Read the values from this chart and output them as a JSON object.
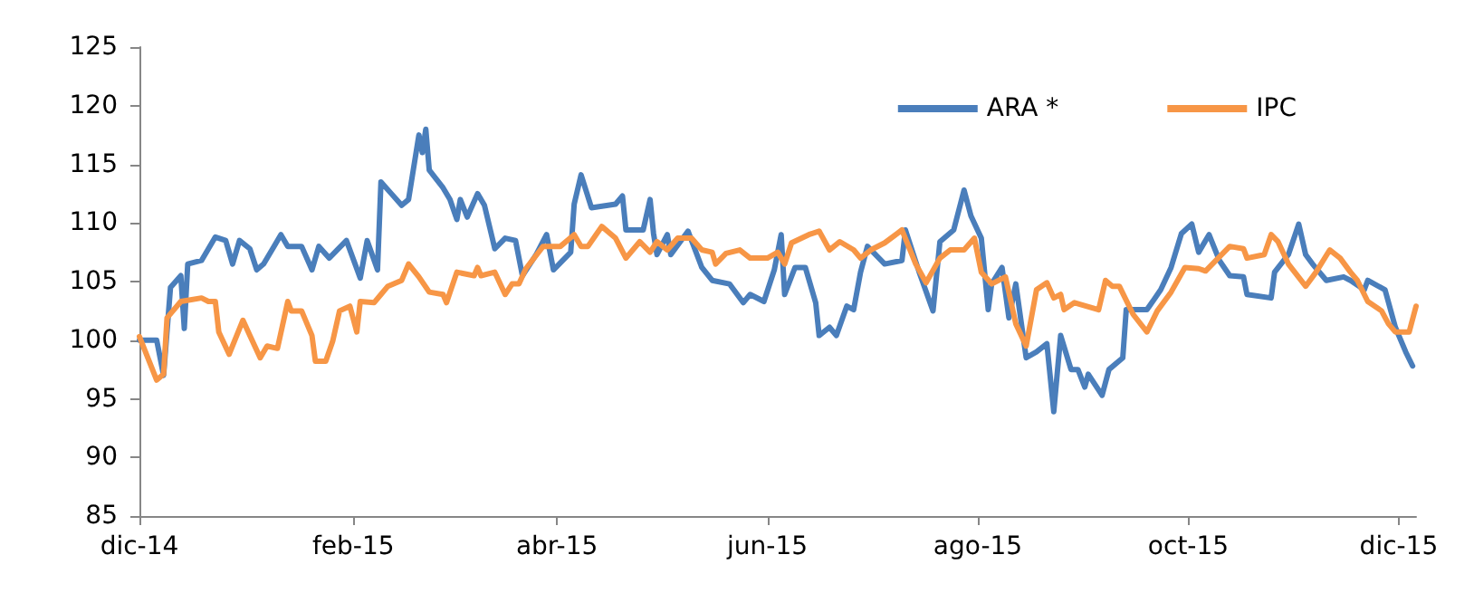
{
  "chart_data": {
    "type": "line",
    "xlim": [
      "2014-12-01",
      "2015-12-06"
    ],
    "ylim": [
      85,
      125
    ],
    "xticks": [
      {
        "value": "2014-12-01",
        "label": "dic-14"
      },
      {
        "value": "2015-02-01",
        "label": "feb-15"
      },
      {
        "value": "2015-04-01",
        "label": "abr-15"
      },
      {
        "value": "2015-06-01",
        "label": "jun-15"
      },
      {
        "value": "2015-08-01",
        "label": "ago-15"
      },
      {
        "value": "2015-10-01",
        "label": "oct-15"
      },
      {
        "value": "2015-12-01",
        "label": "dic-15"
      }
    ],
    "yticks": [
      85,
      90,
      95,
      100,
      105,
      110,
      115,
      120,
      125
    ],
    "grid": false,
    "legend": "top right",
    "marker": "none",
    "line_style": "solid",
    "series": [
      {
        "name": "ARA *",
        "color": "#4a7ebb",
        "x": [
          "2014-12-01",
          "2014-12-06",
          "2014-12-08",
          "2014-12-10",
          "2014-12-13",
          "2014-12-14",
          "2014-12-15",
          "2014-12-19",
          "2014-12-23",
          "2014-12-26",
          "2014-12-28",
          "2014-12-30",
          "2015-01-02",
          "2015-01-04",
          "2015-01-06",
          "2015-01-09",
          "2015-01-11",
          "2015-01-13",
          "2015-01-17",
          "2015-01-20",
          "2015-01-22",
          "2015-01-25",
          "2015-01-30",
          "2015-02-03",
          "2015-02-05",
          "2015-02-08",
          "2015-02-09",
          "2015-02-12",
          "2015-02-15",
          "2015-02-17",
          "2015-02-20",
          "2015-02-21",
          "2015-02-22",
          "2015-02-23",
          "2015-02-27",
          "2015-03-01",
          "2015-03-03",
          "2015-03-04",
          "2015-03-06",
          "2015-03-09",
          "2015-03-11",
          "2015-03-14",
          "2015-03-17",
          "2015-03-20",
          "2015-03-22",
          "2015-03-26",
          "2015-03-29",
          "2015-03-31",
          "2015-04-05",
          "2015-04-06",
          "2015-04-08",
          "2015-04-11",
          "2015-04-18",
          "2015-04-20",
          "2015-04-21",
          "2015-04-26",
          "2015-04-28",
          "2015-04-29",
          "2015-04-30",
          "2015-05-03",
          "2015-05-04",
          "2015-05-09",
          "2015-05-13",
          "2015-05-16",
          "2015-05-21",
          "2015-05-25",
          "2015-05-27",
          "2015-05-31",
          "2015-06-03",
          "2015-06-05",
          "2015-06-06",
          "2015-06-09",
          "2015-06-12",
          "2015-06-15",
          "2015-06-16",
          "2015-06-19",
          "2015-06-21",
          "2015-06-24",
          "2015-06-26",
          "2015-06-28",
          "2015-06-30",
          "2015-07-05",
          "2015-07-10",
          "2015-07-11",
          "2015-07-15",
          "2015-07-19",
          "2015-07-21",
          "2015-07-25",
          "2015-07-28",
          "2015-07-30",
          "2015-08-02",
          "2015-08-04",
          "2015-08-05",
          "2015-08-08",
          "2015-08-10",
          "2015-08-12",
          "2015-08-15",
          "2015-08-18",
          "2015-08-21",
          "2015-08-23",
          "2015-08-25",
          "2015-08-28",
          "2015-08-30",
          "2015-09-01",
          "2015-09-02",
          "2015-09-06",
          "2015-09-08",
          "2015-09-12",
          "2015-09-13",
          "2015-09-19",
          "2015-09-23",
          "2015-09-26",
          "2015-09-29",
          "2015-10-02",
          "2015-10-04",
          "2015-10-07",
          "2015-10-10",
          "2015-10-13",
          "2015-10-17",
          "2015-10-18",
          "2015-10-25",
          "2015-10-26",
          "2015-10-30",
          "2015-11-02",
          "2015-11-04",
          "2015-11-06",
          "2015-11-10",
          "2015-11-15",
          "2015-11-17",
          "2015-11-21",
          "2015-11-22",
          "2015-11-27",
          "2015-11-30",
          "2015-12-03",
          "2015-12-05"
        ],
        "values": [
          100,
          100,
          97,
          104.5,
          105.5,
          101,
          106.5,
          106.8,
          108.8,
          108.5,
          106.5,
          108.5,
          107.8,
          106,
          106.5,
          108,
          109,
          108,
          108,
          106,
          108,
          107,
          108.5,
          105.3,
          108.5,
          106,
          113.5,
          112.5,
          111.5,
          112,
          117.5,
          116,
          118,
          114.5,
          113,
          112,
          110.3,
          112,
          110.5,
          112.5,
          111.5,
          107.8,
          108.7,
          108.5,
          105.5,
          107.3,
          109,
          106,
          107.5,
          111.6,
          114.1,
          111.3,
          111.6,
          112.3,
          109.4,
          109.4,
          112,
          109.1,
          107.3,
          109,
          107.3,
          109.3,
          106.2,
          105.1,
          104.8,
          103.2,
          103.9,
          103.3,
          106,
          109,
          103.9,
          106.2,
          106.2,
          103.2,
          100.4,
          101.1,
          100.4,
          102.9,
          102.6,
          105.8,
          108,
          106.5,
          106.8,
          109.4,
          105.8,
          102.5,
          108.4,
          109.4,
          112.8,
          110.6,
          108.7,
          102.6,
          104.8,
          106.2,
          101.9,
          104.8,
          98.5,
          99,
          99.7,
          93.9,
          100.4,
          97.5,
          97.5,
          96,
          97.1,
          95.3,
          97.5,
          98.5,
          102.6,
          102.6,
          104.3,
          106.2,
          109.1,
          109.9,
          107.5,
          109,
          106.8,
          105.5,
          105.4,
          103.9,
          103.6,
          105.8,
          107.3,
          109.9,
          107.3,
          106.5,
          105.1,
          105.4,
          105.1,
          104.3,
          105.1,
          104.3,
          101.1,
          99,
          97.8
        ]
      },
      {
        "name": "IPC",
        "color": "#f79646",
        "x": [
          "2014-12-01",
          "2014-12-06",
          "2014-12-08",
          "2014-12-09",
          "2014-12-13",
          "2014-12-19",
          "2014-12-21",
          "2014-12-23",
          "2014-12-24",
          "2014-12-27",
          "2014-12-31",
          "2015-01-02",
          "2015-01-05",
          "2015-01-07",
          "2015-01-10",
          "2015-01-13",
          "2015-01-14",
          "2015-01-17",
          "2015-01-20",
          "2015-01-21",
          "2015-01-24",
          "2015-01-26",
          "2015-01-28",
          "2015-01-31",
          "2015-02-02",
          "2015-02-03",
          "2015-02-07",
          "2015-02-09",
          "2015-02-11",
          "2015-02-15",
          "2015-02-17",
          "2015-02-20",
          "2015-02-23",
          "2015-02-27",
          "2015-02-28",
          "2015-03-03",
          "2015-03-08",
          "2015-03-09",
          "2015-03-10",
          "2015-03-14",
          "2015-03-17",
          "2015-03-19",
          "2015-03-21",
          "2015-03-23",
          "2015-03-28",
          "2015-04-02",
          "2015-04-06",
          "2015-04-08",
          "2015-04-10",
          "2015-04-14",
          "2015-04-18",
          "2015-04-21",
          "2015-04-25",
          "2015-04-28",
          "2015-04-30",
          "2015-05-03",
          "2015-05-06",
          "2015-05-10",
          "2015-05-13",
          "2015-05-16",
          "2015-05-17",
          "2015-05-20",
          "2015-05-24",
          "2015-05-27",
          "2015-06-01",
          "2015-06-04",
          "2015-06-06",
          "2015-06-08",
          "2015-06-13",
          "2015-06-16",
          "2015-06-19",
          "2015-06-22",
          "2015-06-26",
          "2015-06-28",
          "2015-07-01",
          "2015-07-05",
          "2015-07-10",
          "2015-07-14",
          "2015-07-17",
          "2015-07-21",
          "2015-07-24",
          "2015-07-28",
          "2015-07-31",
          "2015-08-02",
          "2015-08-05",
          "2015-08-09",
          "2015-08-12",
          "2015-08-15",
          "2015-08-18",
          "2015-08-21",
          "2015-08-23",
          "2015-08-25",
          "2015-08-26",
          "2015-08-29",
          "2015-09-05",
          "2015-09-07",
          "2015-09-09",
          "2015-09-11",
          "2015-09-15",
          "2015-09-19",
          "2015-09-22",
          "2015-09-26",
          "2015-09-30",
          "2015-10-04",
          "2015-10-06",
          "2015-10-09",
          "2015-10-13",
          "2015-10-17",
          "2015-10-18",
          "2015-10-23",
          "2015-10-25",
          "2015-10-27",
          "2015-10-30",
          "2015-11-04",
          "2015-11-07",
          "2015-11-11",
          "2015-11-14",
          "2015-11-17",
          "2015-11-19",
          "2015-11-22",
          "2015-11-26",
          "2015-11-28",
          "2015-11-30",
          "2015-12-04",
          "2015-12-06"
        ],
        "values": [
          100.3,
          96.6,
          97.1,
          101.9,
          103.3,
          103.6,
          103.3,
          103.3,
          100.7,
          98.8,
          101.7,
          100.4,
          98.5,
          99.5,
          99.3,
          103.3,
          102.5,
          102.5,
          100.4,
          98.2,
          98.2,
          99.9,
          102.5,
          102.9,
          100.7,
          103.3,
          103.2,
          103.9,
          104.6,
          105.1,
          106.5,
          105.4,
          104.1,
          103.9,
          103.2,
          105.8,
          105.5,
          106.2,
          105.5,
          105.8,
          103.9,
          104.8,
          104.8,
          106.1,
          108,
          108,
          109,
          108,
          108,
          109.7,
          108.7,
          107,
          108.4,
          107.5,
          108.4,
          107.7,
          108.7,
          108.7,
          107.7,
          107.5,
          106.5,
          107.4,
          107.7,
          107,
          107,
          107.5,
          106.5,
          108.3,
          109,
          109.3,
          107.7,
          108.4,
          107.7,
          107,
          107.7,
          108.3,
          109.4,
          106.5,
          104.9,
          107,
          107.7,
          107.7,
          108.7,
          105.8,
          104.8,
          105.4,
          101.4,
          99.5,
          104.3,
          104.9,
          103.6,
          103.9,
          102.6,
          103.2,
          102.6,
          105.1,
          104.6,
          104.6,
          102.2,
          100.7,
          102.5,
          104.1,
          106.2,
          106.1,
          105.9,
          106.8,
          108,
          107.8,
          107,
          107.3,
          109,
          108.4,
          106.5,
          104.6,
          105.8,
          107.7,
          107,
          105.8,
          105.1,
          103.3,
          102.5,
          101.4,
          100.7,
          100.7,
          102.9
        ]
      }
    ]
  }
}
